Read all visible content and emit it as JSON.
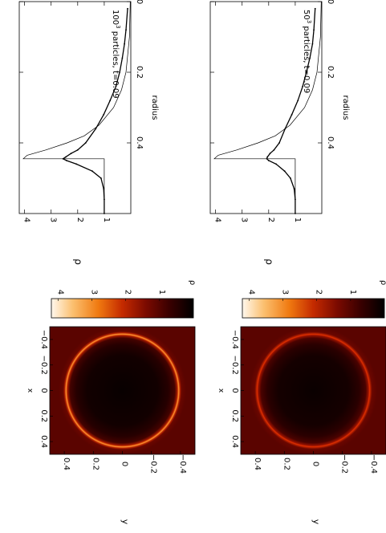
{
  "chart_data": [
    {
      "type": "scatter",
      "panel": "top-left profile",
      "annotation": {
        "prefix": "50",
        "sup": "3",
        "suffix": " particles, t=0.09"
      },
      "xlabel": "radius",
      "ylabel": "ρ",
      "xlim": [
        0,
        0.6
      ],
      "ylim": [
        0,
        4.2
      ],
      "xticks": [
        0,
        0.2,
        0.4
      ],
      "yticks": [
        1,
        2,
        3,
        4
      ],
      "series": [
        {
          "kind": "particles-line",
          "x": [
            0.02,
            0.08,
            0.12,
            0.16,
            0.2,
            0.24,
            0.28,
            0.32,
            0.36,
            0.4,
            0.42,
            0.43,
            0.44,
            0.445,
            0.45,
            0.46,
            0.48,
            0.5,
            0.53,
            0.56,
            0.6
          ],
          "y": [
            0.25,
            0.3,
            0.35,
            0.45,
            0.58,
            0.72,
            0.9,
            1.13,
            1.38,
            1.6,
            1.8,
            1.95,
            2.05,
            2.07,
            2.0,
            1.72,
            1.4,
            1.18,
            1.04,
            1.0,
            1.0
          ]
        },
        {
          "kind": "analytic",
          "x": [
            0.0,
            0.1,
            0.2,
            0.25,
            0.3,
            0.35,
            0.38,
            0.4,
            0.42,
            0.435,
            0.445,
            0.445,
            0.5,
            0.6
          ],
          "y": [
            0.02,
            0.05,
            0.18,
            0.35,
            0.65,
            1.2,
            1.75,
            2.4,
            3.2,
            3.9,
            4.05,
            1.0,
            1.0,
            1.0
          ]
        }
      ]
    },
    {
      "type": "scatter",
      "panel": "bottom-left profile",
      "annotation": {
        "prefix": "100",
        "sup": "3",
        "suffix": " particles, t=0.09"
      },
      "xlabel": "radius",
      "ylabel": "ρ",
      "xlim": [
        0,
        0.6
      ],
      "ylim": [
        0,
        4.2
      ],
      "xticks": [
        0,
        0.2,
        0.4
      ],
      "yticks": [
        1,
        2,
        3,
        4
      ],
      "series": [
        {
          "kind": "particles-line",
          "x": [
            0.02,
            0.08,
            0.12,
            0.16,
            0.2,
            0.24,
            0.28,
            0.32,
            0.36,
            0.4,
            0.42,
            0.43,
            0.44,
            0.445,
            0.45,
            0.46,
            0.48,
            0.5,
            0.53,
            0.56,
            0.6
          ],
          "y": [
            0.12,
            0.18,
            0.24,
            0.32,
            0.42,
            0.56,
            0.78,
            1.02,
            1.32,
            1.7,
            2.0,
            2.25,
            2.45,
            2.55,
            2.42,
            2.05,
            1.45,
            1.12,
            1.02,
            1.0,
            1.0
          ]
        },
        {
          "kind": "analytic",
          "x": [
            0.0,
            0.1,
            0.2,
            0.25,
            0.3,
            0.35,
            0.38,
            0.4,
            0.42,
            0.435,
            0.445,
            0.445,
            0.5,
            0.6
          ],
          "y": [
            0.02,
            0.05,
            0.18,
            0.35,
            0.65,
            1.2,
            1.75,
            2.4,
            3.2,
            3.9,
            4.05,
            1.0,
            1.0,
            1.0
          ]
        }
      ]
    },
    {
      "type": "heatmap",
      "panel": "top-right density map",
      "xlabel": "x",
      "ylabel": "y",
      "xlim": [
        -0.5,
        0.5
      ],
      "ylim": [
        -0.5,
        0.5
      ],
      "ticks": [
        -0.4,
        -0.2,
        0,
        0.2,
        0.4
      ],
      "ring_radius": 0.44,
      "ring_peak": 2.3,
      "interior_value": 0.3,
      "exterior_value": 1.0,
      "colorbar": {
        "label": "ρ",
        "range": [
          0,
          4.2
        ],
        "ticks": [
          1,
          2,
          3,
          4
        ]
      }
    },
    {
      "type": "heatmap",
      "panel": "bottom-right density map",
      "xlabel": "x",
      "ylabel": "y",
      "xlim": [
        -0.5,
        0.5
      ],
      "ylim": [
        -0.5,
        0.5
      ],
      "ticks": [
        -0.4,
        -0.2,
        0,
        0.2,
        0.4
      ],
      "ring_radius": 0.44,
      "ring_peak": 3.0,
      "interior_value": 0.25,
      "exterior_value": 1.0,
      "colorbar": {
        "label": "ρ",
        "range": [
          0,
          4.2
        ],
        "ticks": [
          1,
          2,
          3,
          4
        ]
      }
    }
  ],
  "colors": {
    "ink": "#000000",
    "colormap": [
      "#000000",
      "#3a0000",
      "#7a0a00",
      "#c42a00",
      "#f07a10",
      "#fbc070",
      "#fff8ee"
    ]
  }
}
